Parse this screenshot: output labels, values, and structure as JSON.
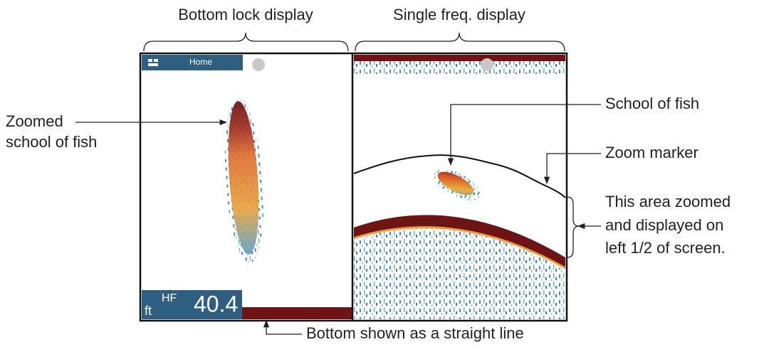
{
  "header": {
    "left_title": "Bottom lock display",
    "right_title": "Single freq. display"
  },
  "screen": {
    "home_button": "Home",
    "unit": "ft",
    "frequency": "HF",
    "depth": 40.4
  },
  "annotations": {
    "zoomed_school": [
      "Zoomed",
      "school of fish"
    ],
    "school": "School of fish",
    "zoom_marker": "Zoom marker",
    "zoom_area": [
      "This area zoomed",
      "and displayed on",
      "left 1/2 of screen."
    ],
    "bottom_line": "Bottom shown as a straight line"
  }
}
